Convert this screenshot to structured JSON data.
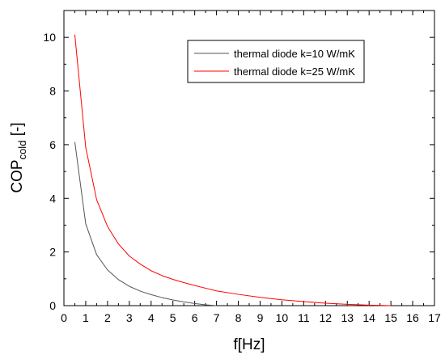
{
  "chart_data": {
    "type": "line",
    "title": "",
    "xlabel": "f[Hz]",
    "ylabel": {
      "main": "COP",
      "subscript": "cold",
      "suffix": " [-]"
    },
    "xlim": [
      0,
      17
    ],
    "ylim": [
      0,
      11
    ],
    "xticks": [
      "0",
      "1",
      "2",
      "3",
      "4",
      "5",
      "6",
      "7",
      "8",
      "9",
      "10",
      "11",
      "12",
      "13",
      "14",
      "15",
      "16",
      "17"
    ],
    "yticks": [
      "0",
      "2",
      "4",
      "6",
      "8",
      "10"
    ],
    "grid": false,
    "legend_position": "top-right",
    "series": [
      {
        "name": "thermal diode k=10 W/mK",
        "color": "#555555",
        "x": [
          0.5,
          1,
          1.5,
          2,
          2.5,
          3,
          3.5,
          4,
          4.5,
          5,
          5.5,
          6,
          6.5,
          7
        ],
        "y": [
          6.1,
          3.05,
          1.9,
          1.33,
          0.97,
          0.72,
          0.54,
          0.41,
          0.3,
          0.21,
          0.14,
          0.08,
          0.03,
          0
        ]
      },
      {
        "name": "thermal diode k=25 W/mK",
        "color": "#ff0000",
        "x": [
          0.5,
          1,
          1.5,
          2,
          2.5,
          3,
          3.5,
          4,
          4.5,
          5,
          5.5,
          6,
          6.5,
          7,
          8,
          9,
          10,
          11,
          12,
          13,
          14,
          15
        ],
        "y": [
          10.1,
          5.9,
          3.95,
          2.95,
          2.3,
          1.85,
          1.55,
          1.3,
          1.12,
          0.98,
          0.86,
          0.75,
          0.65,
          0.55,
          0.42,
          0.31,
          0.22,
          0.15,
          0.09,
          0.05,
          0.02,
          0
        ]
      }
    ]
  }
}
